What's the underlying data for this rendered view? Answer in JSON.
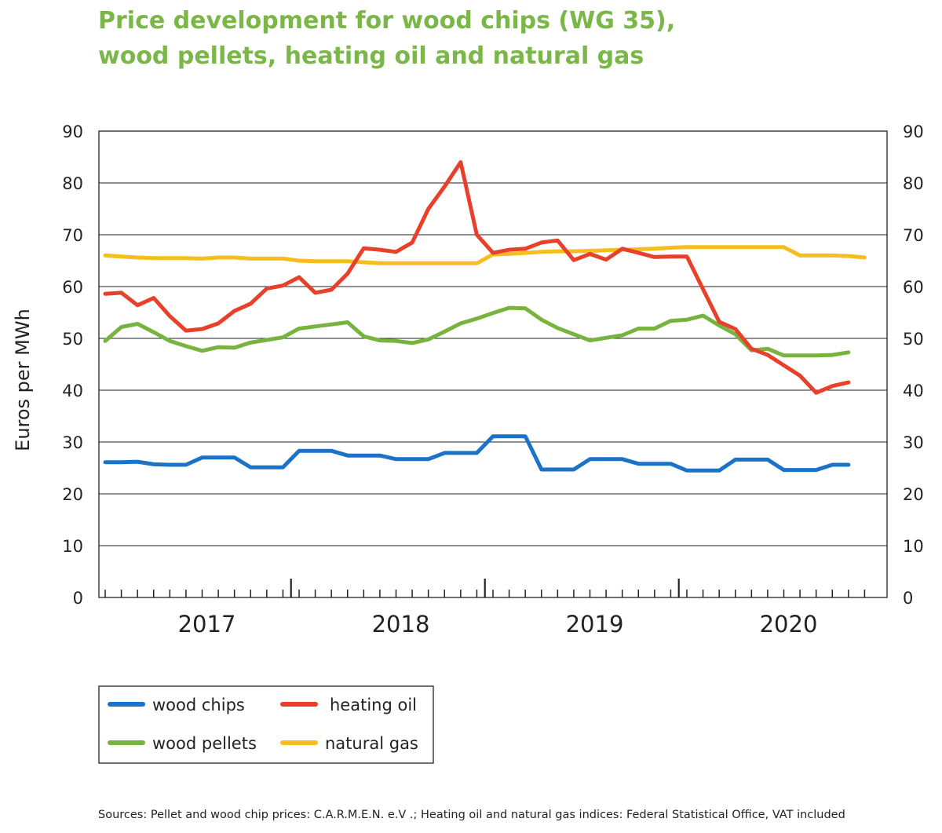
{
  "title_line1": "Price development for wood chips (WG 35),",
  "title_line2": "wood pellets, heating oil and natural gas",
  "source": "Sources: Pellet and wood chip prices: C.A.R.M.E.N. e.V .; Heating oil and natural gas indices: Federal Statistical Office, VAT included",
  "chart_data": {
    "type": "line",
    "title": "Price development for wood chips (WG 35), wood pellets, heating oil and natural gas",
    "ylabel": "Euros per MWh",
    "xlabel": "",
    "ylim": [
      0,
      90
    ],
    "yticks": [
      "0",
      "10",
      "20",
      "30",
      "40",
      "50",
      "60",
      "70",
      "80",
      "90"
    ],
    "xlim": [
      0,
      48
    ],
    "year_labels": [
      {
        "label": "2017",
        "month_index": 6
      },
      {
        "label": "2018",
        "month_index": 18
      },
      {
        "label": "2019",
        "month_index": 30
      },
      {
        "label": "2020",
        "month_index": 42
      }
    ],
    "x_note": "monthly data, July 2016 - May 2020; x = months since start",
    "grid": true,
    "legend_position": "bottom-left",
    "series": [
      {
        "name": "wood chips",
        "color": "#1a73c8",
        "values": [
          26.1,
          26.1,
          26.2,
          25.7,
          25.6,
          25.6,
          27.0,
          27.0,
          27.0,
          25.1,
          25.1,
          25.1,
          28.3,
          28.3,
          28.3,
          27.4,
          27.4,
          27.4,
          26.7,
          26.7,
          26.7,
          27.9,
          27.9,
          27.9,
          31.1,
          31.1,
          31.1,
          24.7,
          24.7,
          24.7,
          26.7,
          26.7,
          26.7,
          25.8,
          25.8,
          25.8,
          24.5,
          24.5,
          24.5,
          26.6,
          26.6,
          26.6,
          24.6,
          24.6,
          24.6,
          25.6,
          25.6,
          null
        ]
      },
      {
        "name": "wood pellets",
        "color": "#76b43f",
        "values": [
          49.5,
          52.2,
          52.8,
          51.2,
          49.5,
          48.5,
          47.6,
          48.3,
          48.2,
          49.2,
          49.7,
          50.2,
          51.9,
          52.3,
          52.7,
          53.1,
          50.4,
          49.6,
          49.5,
          49.1,
          49.8,
          51.3,
          52.9,
          53.8,
          54.9,
          55.9,
          55.8,
          53.6,
          52.0,
          50.8,
          49.6,
          50.1,
          50.6,
          51.9,
          51.9,
          53.4,
          53.6,
          54.4,
          52.5,
          50.8,
          47.7,
          48.0,
          46.7,
          46.7,
          46.7,
          46.8,
          47.3,
          null
        ]
      },
      {
        "name": "heating oil",
        "color": "#e8402a",
        "values": [
          58.6,
          58.8,
          56.4,
          57.8,
          54.3,
          51.5,
          51.8,
          52.9,
          55.3,
          56.7,
          59.6,
          60.2,
          61.8,
          58.8,
          59.4,
          62.5,
          67.4,
          67.1,
          66.7,
          68.5,
          75.0,
          79.3,
          84.0,
          70.0,
          66.5,
          67.1,
          67.3,
          68.5,
          68.9,
          65.1,
          66.3,
          65.2,
          67.3,
          66.5,
          65.7,
          65.8,
          65.8,
          59.5,
          53.2,
          51.8,
          48.0,
          46.8,
          44.8,
          42.8,
          39.5,
          40.8,
          41.5,
          null
        ]
      },
      {
        "name": "natural gas",
        "color": "#f5be1e",
        "values": [
          66.0,
          65.8,
          65.6,
          65.5,
          65.5,
          65.5,
          65.4,
          65.6,
          65.6,
          65.4,
          65.4,
          65.4,
          65.0,
          64.9,
          64.9,
          64.9,
          64.7,
          64.5,
          64.5,
          64.5,
          64.5,
          64.5,
          64.5,
          64.5,
          66.2,
          66.3,
          66.5,
          66.7,
          66.8,
          66.8,
          66.9,
          67.0,
          67.1,
          67.2,
          67.3,
          67.5,
          67.6,
          67.6,
          67.6,
          67.6,
          67.6,
          67.6,
          67.6,
          66.0,
          66.0,
          66.0,
          65.9,
          65.6
        ]
      }
    ]
  }
}
